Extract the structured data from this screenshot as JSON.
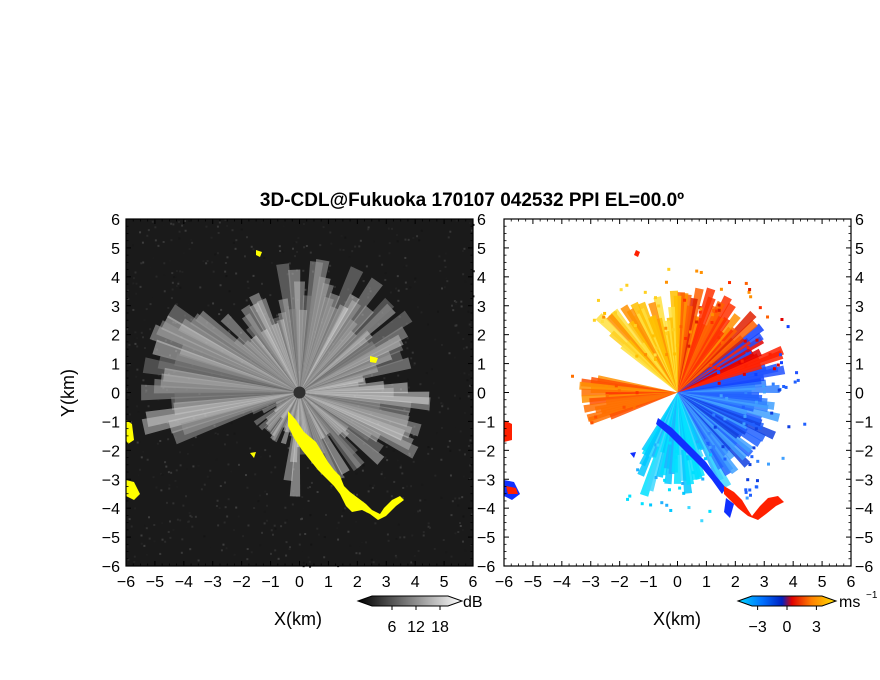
{
  "chart_data": [
    {
      "type": "heatmap",
      "panel": "left",
      "title": "3D-CDL@Fukuoka 170107 042532 PPI EL=00.0º",
      "xlabel": "X(km)",
      "ylabel": "Y(km)",
      "xlim": [
        -6,
        6
      ],
      "ylim": [
        -6,
        6
      ],
      "x_ticks": [
        "−6",
        "−5",
        "−4",
        "−3",
        "−2",
        "−1",
        "0",
        "1",
        "2",
        "3",
        "4",
        "5",
        "6"
      ],
      "y_ticks": [
        "6",
        "5",
        "4",
        "3",
        "2",
        "1",
        "0",
        "−1",
        "−2",
        "−3",
        "−4",
        "−5",
        "−6"
      ],
      "field": "received signal SNR (grayscale), clutter marked yellow",
      "colorbar": {
        "unit": "dB",
        "tick_labels": [
          "6",
          "12",
          "18"
        ],
        "tick_values": [
          6,
          12,
          18
        ],
        "colors": [
          "#000000",
          "#ffffff"
        ]
      },
      "clutter_color": "#ffff00",
      "background_color": "#1a1a1a",
      "beam_center": [
        0,
        0
      ]
    },
    {
      "type": "heatmap",
      "panel": "right",
      "xlabel": "X(km)",
      "xlim": [
        -6,
        6
      ],
      "ylim": [
        -6,
        6
      ],
      "x_ticks": [
        "−6",
        "−5",
        "−4",
        "−3",
        "−2",
        "−1",
        "0",
        "1",
        "2",
        "3",
        "4",
        "5",
        "6"
      ],
      "y_ticks": [
        "6",
        "5",
        "4",
        "3",
        "2",
        "1",
        "0",
        "−1",
        "−2",
        "−3",
        "−4",
        "−5",
        "−6"
      ],
      "field": "Doppler velocity",
      "colorbar": {
        "unit": "ms",
        "unit_exponent": "−1",
        "tick_labels": [
          "−3",
          "0",
          "3"
        ],
        "tick_values": [
          -3,
          0,
          3
        ],
        "colors": [
          "#00c8ff",
          "#0040ff",
          "#ff2000",
          "#ff9000",
          "#ffe000"
        ]
      },
      "background_color": "#ffffff",
      "beam_center": [
        0,
        0
      ]
    }
  ]
}
